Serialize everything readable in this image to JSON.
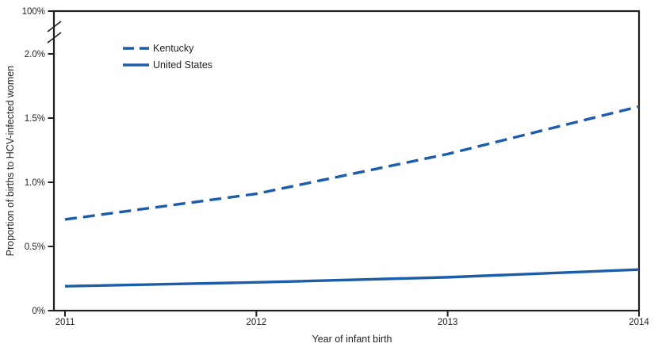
{
  "chart_data": {
    "type": "line",
    "title": "",
    "xlabel": "Year of infant birth",
    "ylabel": "Proportion of births to HCV-infected women",
    "categories": [
      "2011",
      "2012",
      "2013",
      "2014"
    ],
    "series": [
      {
        "name": "Kentucky",
        "line_style": "dashed",
        "values_percent": [
          0.71,
          0.91,
          1.22,
          1.59
        ]
      },
      {
        "name": "United States",
        "line_style": "solid",
        "values_percent": [
          0.19,
          0.22,
          0.26,
          0.32
        ]
      }
    ],
    "y_axis": {
      "tick_labels_lower": [
        "0%",
        "0.5%",
        "1.0%",
        "1.5%",
        "2.0%"
      ],
      "tick_values_lower": [
        0,
        0.5,
        1.0,
        1.5,
        2.0
      ],
      "top_tick_label": "100%",
      "top_tick_value": 100,
      "has_axis_break": true,
      "ylim_lower_segment": [
        0,
        2.33
      ]
    },
    "legend": {
      "position": "top-left-inside",
      "entries": [
        "Kentucky",
        "United States"
      ]
    },
    "grid": "off",
    "colors": {
      "series_line": "#1b5dab",
      "axis_and_text": "#231f20"
    }
  }
}
